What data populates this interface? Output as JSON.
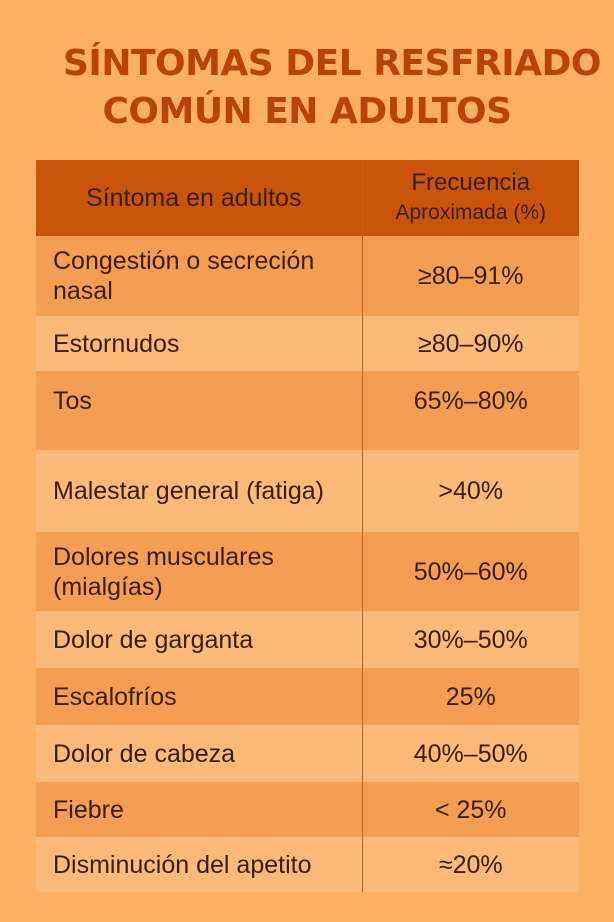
{
  "title": {
    "line1": "SÍNTOMAS DEL RESFRIADO",
    "line2": "COMÚN EN ADULTOS"
  },
  "table": {
    "headers": {
      "symptom": "Síntoma en adultos",
      "frequency_line1": "Frecuencia",
      "frequency_line2": "Aproximada (%)"
    },
    "rows": [
      {
        "symptom": "Congestión o secreción nasal",
        "frequency": "≥80–91%"
      },
      {
        "symptom": "Estornudos",
        "frequency": "≥80–90%"
      },
      {
        "symptom": "Tos",
        "frequency": "65%–80%"
      },
      {
        "symptom": "Malestar general (fatiga)",
        "frequency": ">40%"
      },
      {
        "symptom": "Dolores musculares (mialgías)",
        "frequency": "50%–60%"
      },
      {
        "symptom": "Dolor de garganta",
        "frequency": "30%–50%"
      },
      {
        "symptom": "Escalofríos",
        "frequency": "25%"
      },
      {
        "symptom": "Dolor de cabeza",
        "frequency": "40%–50%"
      },
      {
        "symptom": "Fiebre",
        "frequency": "< 25%"
      },
      {
        "symptom": "Disminución del apetito",
        "frequency": "≈20%"
      }
    ]
  }
}
